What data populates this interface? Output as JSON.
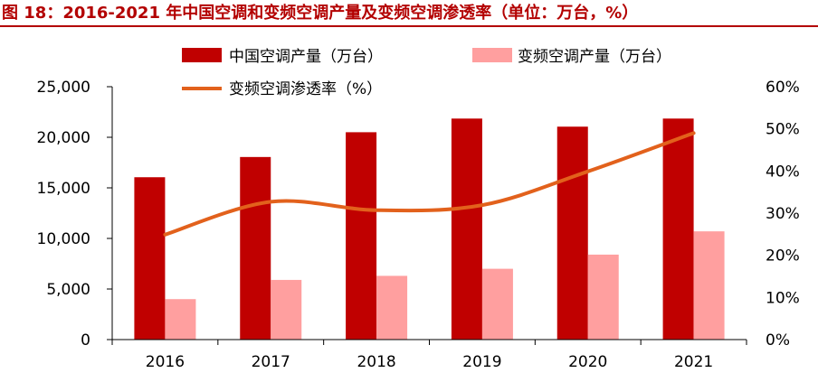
{
  "title": "图 18：2016-2021 年中国空调和变频空调产量及变频空调渗透率（单位：万台，%）",
  "colors": {
    "title": "#b30000",
    "series1": "#c00000",
    "series2": "#ff9f9f",
    "line": "#e2611c",
    "axis": "#000000"
  },
  "chart_data": {
    "type": "bar",
    "categories": [
      "2016",
      "2017",
      "2018",
      "2019",
      "2020",
      "2021"
    ],
    "series": [
      {
        "name": "中国空调产量（万台）",
        "type": "bar",
        "axis": "left",
        "values": [
          16050,
          18050,
          20500,
          21850,
          21050,
          21850
        ]
      },
      {
        "name": "变频空调产量（万台）",
        "type": "bar",
        "axis": "left",
        "values": [
          4000,
          5900,
          6300,
          7000,
          8400,
          10700
        ]
      },
      {
        "name": "变频空调渗透率（%）",
        "type": "line",
        "axis": "right",
        "values": [
          24.9,
          32.7,
          30.7,
          31.9,
          39.9,
          49.0
        ]
      }
    ],
    "ylim": [
      0,
      25000
    ],
    "yticks": [
      "0",
      "5,000",
      "10,000",
      "15,000",
      "20,000",
      "25,000"
    ],
    "y2lim": [
      0,
      60
    ],
    "y2ticks": [
      "0%",
      "10%",
      "20%",
      "30%",
      "40%",
      "50%",
      "60%"
    ],
    "legend": "top"
  }
}
